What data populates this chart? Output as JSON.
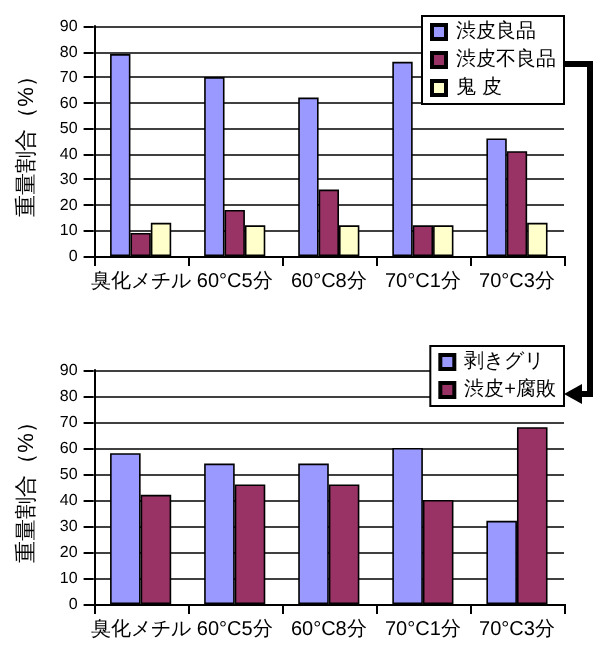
{
  "chart_data": [
    {
      "type": "bar",
      "ylabel": "重量割合（%）",
      "categories": [
        "臭化メチル",
        "60°C5分",
        "60°C8分",
        "70°C1分",
        "70°C3分"
      ],
      "ylim": [
        0,
        90
      ],
      "yticks": [
        0,
        10,
        20,
        30,
        40,
        50,
        60,
        70,
        80,
        90
      ],
      "grid": "y",
      "legend": "top right",
      "series": [
        {
          "name": "渋皮良品",
          "color": "#9999ff",
          "values": [
            79,
            70,
            62,
            76,
            46
          ]
        },
        {
          "name": "渋皮不良品",
          "color": "#993366",
          "values": [
            9,
            18,
            26,
            12,
            41
          ]
        },
        {
          "name": "鬼 皮",
          "color": "#ffffcc",
          "values": [
            13,
            12,
            12,
            12,
            13
          ]
        }
      ]
    },
    {
      "type": "bar",
      "ylabel": "重量割合（%）",
      "categories": [
        "臭化メチル",
        "60°C5分",
        "60°C8分",
        "70°C1分",
        "70°C3分"
      ],
      "ylim": [
        0,
        90
      ],
      "yticks": [
        0,
        10,
        20,
        30,
        40,
        50,
        60,
        70,
        80,
        90
      ],
      "grid": "y",
      "legend": "top right",
      "series": [
        {
          "name": "剥きグリ",
          "color": "#9999ff",
          "values": [
            58,
            54,
            54,
            60,
            32
          ]
        },
        {
          "name": "渋皮+腐敗",
          "color": "#993366",
          "values": [
            42,
            46,
            46,
            40,
            68
          ]
        }
      ]
    }
  ]
}
